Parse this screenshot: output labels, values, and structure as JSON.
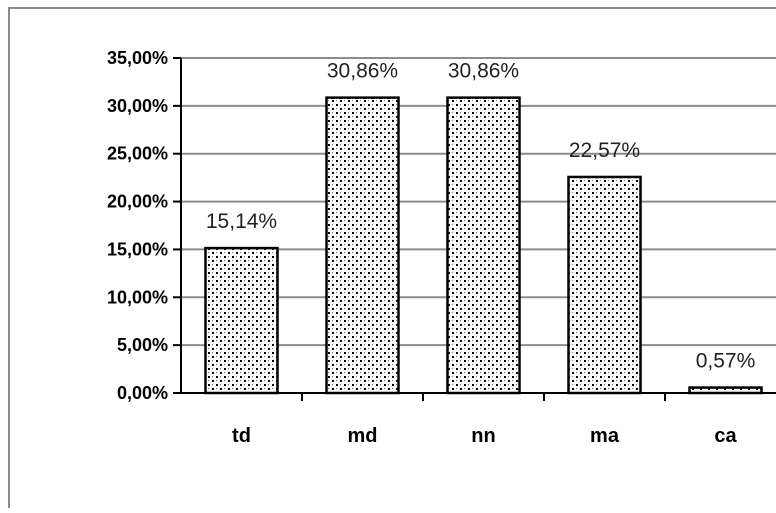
{
  "chart_data": {
    "type": "bar",
    "categories": [
      "td",
      "md",
      "nn",
      "ma",
      "ca"
    ],
    "values": [
      15.14,
      30.86,
      30.86,
      22.57,
      0.57
    ],
    "data_labels": [
      "15,14%",
      "30,86%",
      "30,86%",
      "22,57%",
      "0,57%"
    ],
    "ylim": [
      0,
      35
    ],
    "yticks": [
      {
        "value": 0,
        "label": "0,00%"
      },
      {
        "value": 5,
        "label": "5,00%"
      },
      {
        "value": 10,
        "label": "10,00%"
      },
      {
        "value": 15,
        "label": "15,00%"
      },
      {
        "value": 20,
        "label": "20,00%"
      },
      {
        "value": 25,
        "label": "25,00%"
      },
      {
        "value": 30,
        "label": "30,00%"
      },
      {
        "value": 35,
        "label": "35,00%"
      }
    ],
    "grid": true,
    "bar_pattern": "dotted"
  }
}
